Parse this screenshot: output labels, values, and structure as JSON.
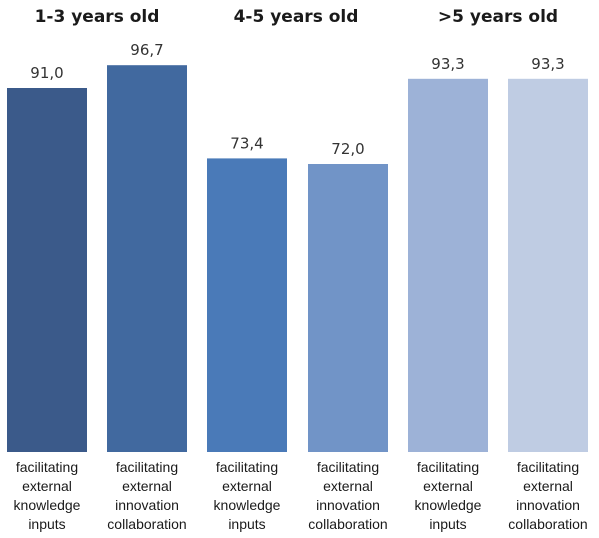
{
  "chart_data": {
    "type": "bar",
    "groups": [
      "1-3 years old",
      "4-5 years old",
      ">5 years old"
    ],
    "categories": [
      [
        "facilitating",
        "external",
        "knowledge",
        "inputs"
      ],
      [
        "facilitating",
        "external",
        "innovation",
        "collaboration"
      ],
      [
        "facilitating",
        "external",
        "knowledge",
        "inputs"
      ],
      [
        "facilitating",
        "external",
        "innovation",
        "collaboration"
      ],
      [
        "facilitating",
        "external",
        "knowledge",
        "inputs"
      ],
      [
        "facilitating",
        "external",
        "innovation",
        "collaboration"
      ]
    ],
    "values": [
      91.0,
      96.7,
      73.4,
      72.0,
      93.3,
      93.3
    ],
    "value_labels": [
      "91,0",
      "96,7",
      "73,4",
      "72,0",
      "93,3",
      "93,3"
    ],
    "colors": [
      "#3b5a8a",
      "#41699f",
      "#4a7ab8",
      "#7194c7",
      "#9db2d7",
      "#bfcce3"
    ],
    "ylim": [
      0,
      100
    ],
    "grid": false,
    "legend": "none",
    "title": "",
    "xlabel": "",
    "ylabel": ""
  }
}
